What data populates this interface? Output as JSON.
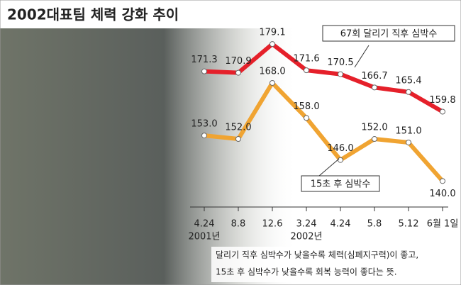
{
  "chart_data": {
    "type": "line",
    "title": "2002대표팀 체력 강화 추이",
    "categories": [
      "4.24",
      "8.8",
      "12.6",
      "3.24",
      "4.24",
      "5.8",
      "5.12",
      "6월 1일"
    ],
    "x_annotations": [
      "2001년",
      "2002년"
    ],
    "series": [
      {
        "name": "67회 달리기 직후 심박수",
        "color": "#e5202a",
        "values": [
          171.3,
          170.9,
          179.1,
          171.6,
          170.5,
          166.7,
          165.4,
          159.8
        ]
      },
      {
        "name": "15초 후 심박수",
        "color": "#f0a432",
        "values": [
          153,
          152,
          168,
          158,
          146,
          152,
          151,
          140
        ],
        "value_labels": [
          "153.0",
          "152.0",
          "168.0",
          "158.0",
          "146.0",
          "152.0",
          "151.0",
          "140.0"
        ]
      }
    ],
    "ylim": [
      134,
      186
    ],
    "caption": [
      "달리기 직후 심박수가 낮을수록 체력(심폐지구력)이 좋고,",
      "15초 후 심박수가 낮을수록 회복 능력이 좋다는 뜻."
    ]
  }
}
